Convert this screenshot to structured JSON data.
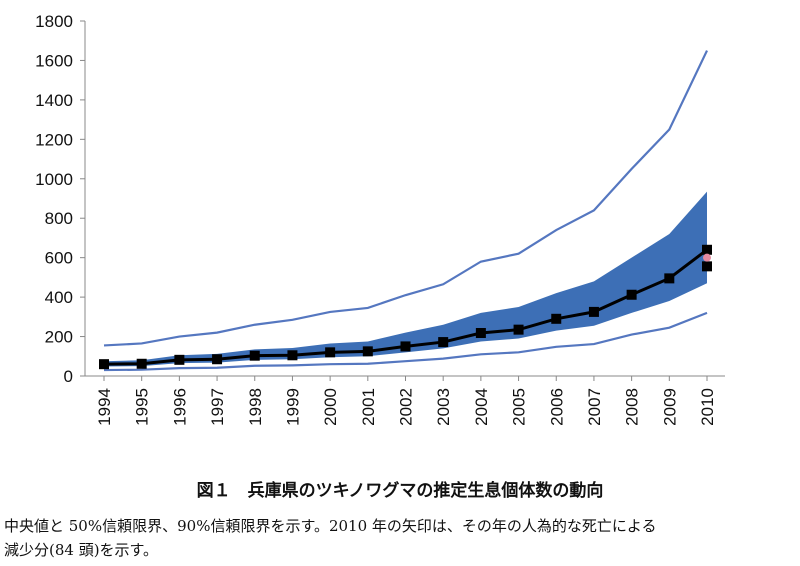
{
  "chart_data": {
    "type": "line",
    "x": [
      1994,
      1995,
      1996,
      1997,
      1998,
      1999,
      2000,
      2001,
      2002,
      2003,
      2004,
      2005,
      2006,
      2007,
      2008,
      2009,
      2010
    ],
    "yticks": [
      0,
      200,
      400,
      600,
      800,
      1000,
      1200,
      1400,
      1600,
      1800
    ],
    "ylim": [
      0,
      1800
    ],
    "grid": false,
    "legend": "none",
    "series": [
      {
        "role": "median",
        "color": "#000000",
        "values": [
          60,
          62,
          82,
          85,
          103,
          105,
          120,
          125,
          150,
          172,
          218,
          235,
          290,
          325,
          412,
          495,
          640
        ]
      },
      {
        "role": "ci50_upper",
        "color": "#3d6fb6",
        "values": [
          75,
          80,
          105,
          112,
          135,
          142,
          165,
          175,
          220,
          260,
          320,
          350,
          420,
          480,
          600,
          720,
          935
        ]
      },
      {
        "role": "ci50_lower",
        "color": "#3d6fb6",
        "values": [
          48,
          50,
          65,
          68,
          82,
          85,
          95,
          100,
          120,
          140,
          175,
          190,
          230,
          255,
          320,
          380,
          470
        ]
      },
      {
        "role": "ci90_upper",
        "color": "#5577c0",
        "values": [
          155,
          165,
          200,
          220,
          260,
          285,
          325,
          345,
          410,
          465,
          580,
          620,
          740,
          840,
          1050,
          1250,
          1650
        ]
      },
      {
        "role": "ci90_lower",
        "color": "#5577c0",
        "values": [
          30,
          32,
          40,
          42,
          52,
          54,
          60,
          62,
          75,
          88,
          110,
          120,
          148,
          162,
          210,
          245,
          320
        ]
      }
    ],
    "extra_points": [
      {
        "x": 2010,
        "y": 556,
        "color": "#000000"
      },
      {
        "x": 2010,
        "y": 600,
        "color": "#e58aa0"
      }
    ]
  },
  "caption": "図１　兵庫県のツキノワグマの推定生息個体数の動向",
  "note_line1": "中央値と 50%信頼限界、90%信頼限界を示す。2010 年の矢印は、その年の人為的な死亡による",
  "note_line2": "減少分(84 頭)を示す。"
}
